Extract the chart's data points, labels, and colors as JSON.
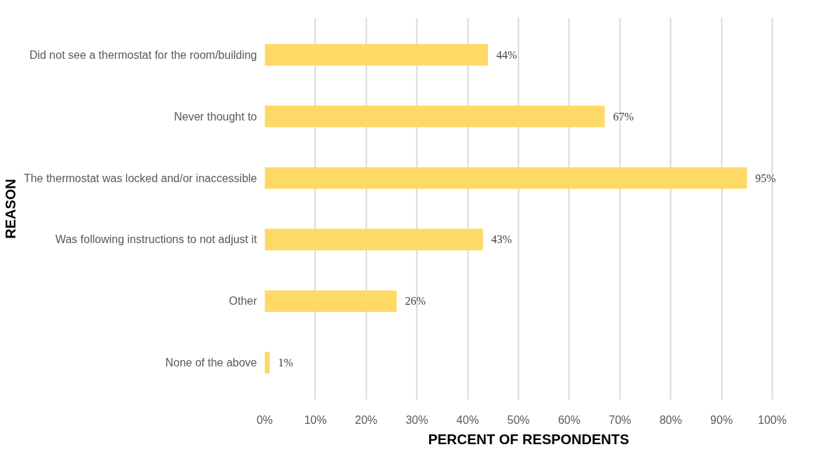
{
  "chart_data": {
    "type": "bar",
    "orientation": "horizontal",
    "xlabel": "PERCENT OF RESPONDENTS",
    "ylabel": "REASON",
    "categories": [
      "Did not see a thermostat for the room/building",
      "Never thought to",
      "The thermostat was locked and/or inaccessible",
      "Was following instructions to not adjust it",
      "Other",
      "None of the above"
    ],
    "values": [
      44,
      67,
      95,
      43,
      26,
      1
    ],
    "value_labels": [
      "44%",
      "67%",
      "95%",
      "43%",
      "26%",
      "1%"
    ],
    "color": "#ffd966",
    "xlim": [
      0,
      100
    ],
    "xticks": [
      {
        "value": 0,
        "label": "0%"
      },
      {
        "value": 10,
        "label": "10%"
      },
      {
        "value": 20,
        "label": "20%"
      },
      {
        "value": 30,
        "label": "30%"
      },
      {
        "value": 40,
        "label": "40%"
      },
      {
        "value": 50,
        "label": "50%"
      },
      {
        "value": 60,
        "label": "60%"
      },
      {
        "value": 70,
        "label": "70%"
      },
      {
        "value": 80,
        "label": "80%"
      },
      {
        "value": 90,
        "label": "90%"
      },
      {
        "value": 100,
        "label": "100%"
      }
    ],
    "grid": "x"
  }
}
